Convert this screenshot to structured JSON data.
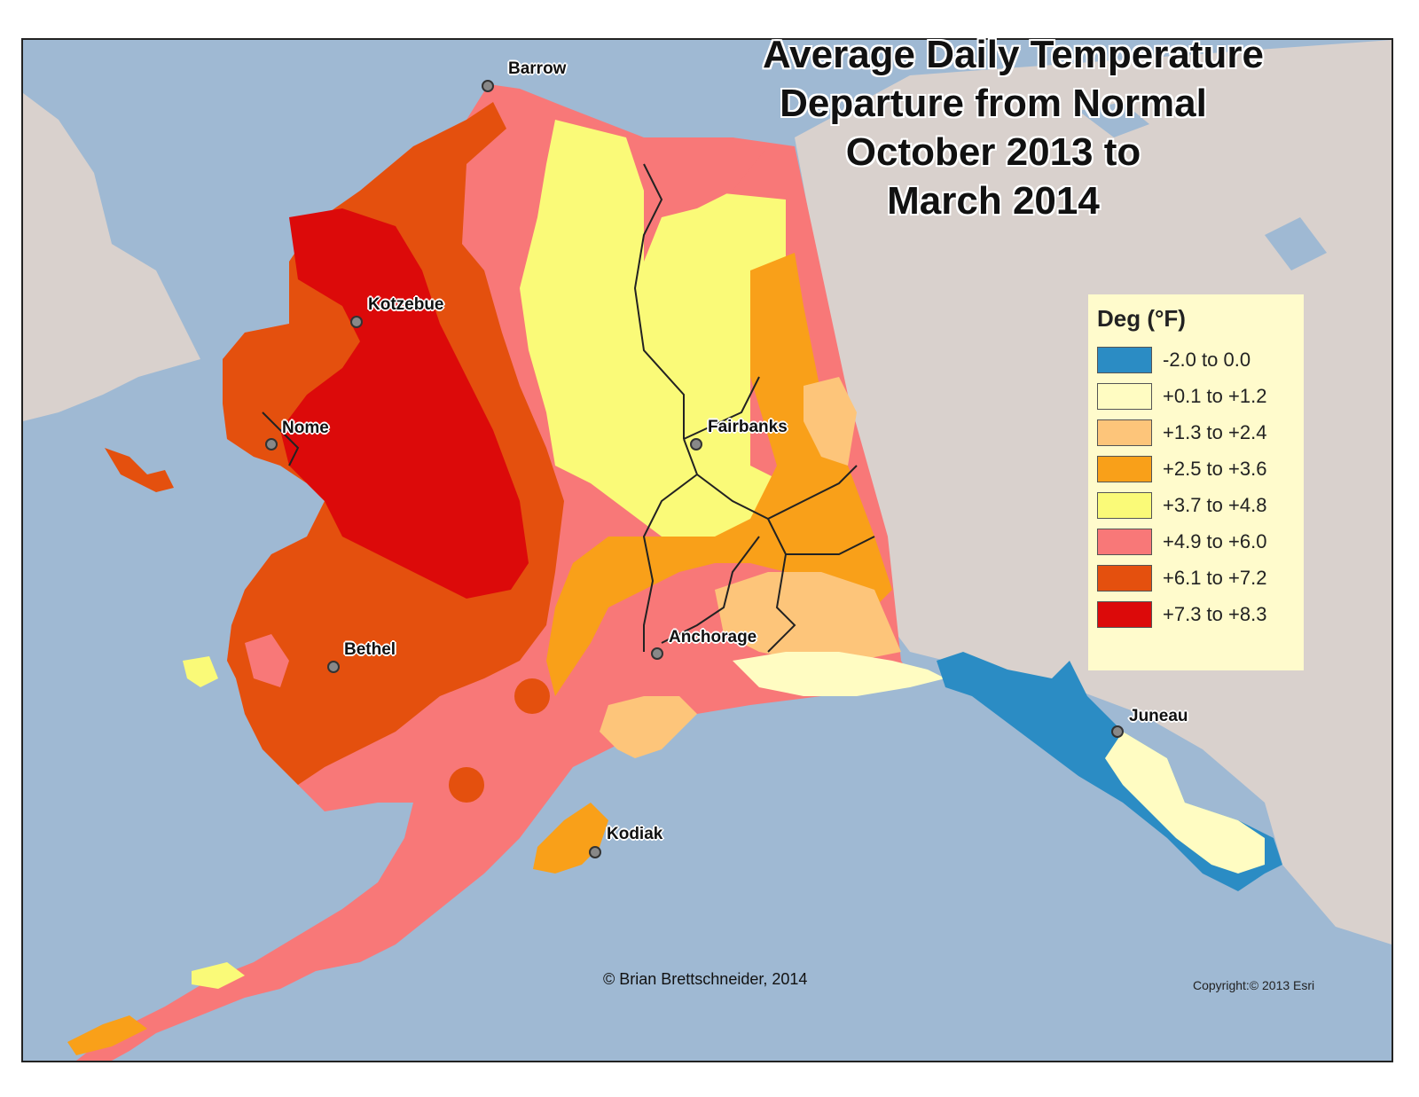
{
  "title_lines": [
    "Average Daily Temperature",
    "Departure from Normal",
    "October 2013 to",
    "March 2014"
  ],
  "legend": {
    "title": "Deg (°F)",
    "items": [
      {
        "label": "-2.0 to 0.0",
        "color": "#2b8cc4"
      },
      {
        "label": "+0.1 to +1.2",
        "color": "#fffcc2"
      },
      {
        "label": "+1.3 to +2.4",
        "color": "#fdc57a"
      },
      {
        "label": "+2.5 to +3.6",
        "color": "#f9a019"
      },
      {
        "label": "+3.7 to +4.8",
        "color": "#fafa78"
      },
      {
        "label": "+4.9 to +6.0",
        "color": "#f87878"
      },
      {
        "label": "+6.1 to +7.2",
        "color": "#e4500e"
      },
      {
        "label": "+7.3 to +8.3",
        "color": "#dc0a0a"
      }
    ]
  },
  "cities": [
    {
      "name": "Barrow"
    },
    {
      "name": "Kotzebue"
    },
    {
      "name": "Nome"
    },
    {
      "name": "Fairbanks"
    },
    {
      "name": "Bethel"
    },
    {
      "name": "Anchorage"
    },
    {
      "name": "Juneau"
    },
    {
      "name": "Kodiak"
    }
  ],
  "credit": "© Brian Brettschneider, 2014",
  "basemap_credit": "Copyright:© 2013 Esri",
  "colors": {
    "ocean": "#9fb9d3",
    "land_bg": "#d8d0cc",
    "road": "#222222"
  }
}
